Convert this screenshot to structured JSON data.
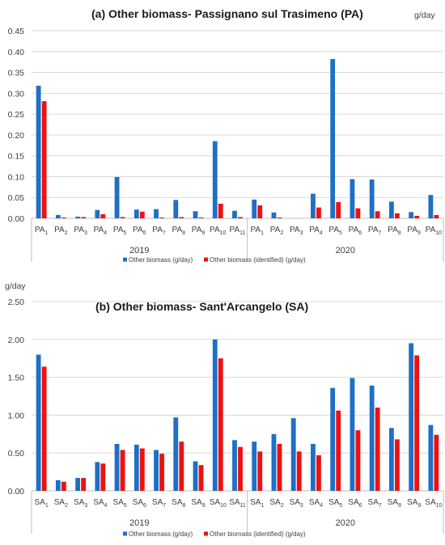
{
  "colors": {
    "series1": "#1f6fc5",
    "series2": "#ee1111",
    "grid": "#d9d9d9",
    "axis": "#bfbfbf"
  },
  "chart_data": [
    {
      "id": "a",
      "type": "bar",
      "title": "(a) Other biomass- Passignano sul Trasimeno (PA)",
      "ylabel": "g/day",
      "ylim": [
        0,
        0.45
      ],
      "yticks": [
        "0.00",
        "0.05",
        "0.10",
        "0.15",
        "0.20",
        "0.25",
        "0.30",
        "0.35",
        "0.40",
        "0.45"
      ],
      "groups": [
        {
          "year": "2019",
          "categories": [
            [
              "PA",
              "1"
            ],
            [
              "PA",
              "2"
            ],
            [
              "PA",
              "3"
            ],
            [
              "PA",
              "4"
            ],
            [
              "PA",
              "5"
            ],
            [
              "PA",
              "6"
            ],
            [
              "PA",
              "7"
            ],
            [
              "PA",
              "8"
            ],
            [
              "PA",
              "9"
            ],
            [
              "PA",
              "10"
            ],
            [
              "PA",
              "11"
            ]
          ]
        },
        {
          "year": "2020",
          "categories": [
            [
              "PA",
              "1"
            ],
            [
              "PA",
              "2"
            ],
            [
              "PA",
              "3"
            ],
            [
              "PA",
              "4"
            ],
            [
              "PA",
              "5"
            ],
            [
              "PA",
              "6"
            ],
            [
              "PA",
              "7"
            ],
            [
              "PA",
              "8"
            ],
            [
              "PA",
              "9"
            ],
            [
              "PA",
              "10"
            ]
          ]
        }
      ],
      "series": [
        {
          "name": "Other biomass (g/day)",
          "values": [
            0.318,
            0.008,
            0.004,
            0.02,
            0.099,
            0.021,
            0.022,
            0.044,
            0.017,
            0.185,
            0.018,
            0.045,
            0.014,
            0.0,
            0.059,
            0.382,
            0.094,
            0.093,
            0.04,
            0.015,
            0.056
          ]
        },
        {
          "name": "Other biomass (identified) (g/day)",
          "values": [
            0.281,
            0.002,
            0.003,
            0.01,
            0.003,
            0.016,
            0.002,
            0.003,
            0.002,
            0.035,
            0.003,
            0.031,
            0.002,
            0.0,
            0.026,
            0.039,
            0.024,
            0.017,
            0.012,
            0.006,
            0.008
          ]
        }
      ]
    },
    {
      "id": "b",
      "type": "bar",
      "title": "(b) Other biomass- Sant'Arcangelo (SA)",
      "ylabel": "g/day",
      "ylim": [
        0,
        2.5
      ],
      "yticks": [
        "0.00",
        "0.50",
        "1.00",
        "1.50",
        "2.00",
        "2.50"
      ],
      "groups": [
        {
          "year": "2019",
          "categories": [
            [
              "SA",
              "1"
            ],
            [
              "SA",
              "2"
            ],
            [
              "SA",
              "3"
            ],
            [
              "SA",
              "4"
            ],
            [
              "SA",
              "5"
            ],
            [
              "SA",
              "6"
            ],
            [
              "SA",
              "7"
            ],
            [
              "SA",
              "8"
            ],
            [
              "SA",
              "9"
            ],
            [
              "SA",
              "10"
            ],
            [
              "SA",
              "11"
            ]
          ]
        },
        {
          "year": "2020",
          "categories": [
            [
              "SA",
              "1"
            ],
            [
              "SA",
              "2"
            ],
            [
              "SA",
              "3"
            ],
            [
              "SA",
              "4"
            ],
            [
              "SA",
              "5"
            ],
            [
              "SA",
              "6"
            ],
            [
              "SA",
              "7"
            ],
            [
              "SA",
              "8"
            ],
            [
              "SA",
              "9"
            ],
            [
              "SA",
              "10"
            ]
          ]
        }
      ],
      "series": [
        {
          "name": "Other biomass (g/day)",
          "values": [
            1.8,
            0.14,
            0.17,
            0.38,
            0.62,
            0.61,
            0.54,
            0.97,
            0.39,
            2.0,
            0.67,
            0.65,
            0.75,
            0.96,
            0.62,
            1.36,
            1.49,
            1.39,
            0.83,
            1.95,
            0.87
          ]
        },
        {
          "name": "Other biomass (identified) (g/day)",
          "values": [
            1.64,
            0.12,
            0.17,
            0.36,
            0.54,
            0.56,
            0.49,
            0.65,
            0.34,
            1.75,
            0.58,
            0.52,
            0.62,
            0.52,
            0.47,
            1.06,
            0.8,
            1.1,
            0.68,
            1.79,
            0.74
          ]
        }
      ]
    }
  ]
}
